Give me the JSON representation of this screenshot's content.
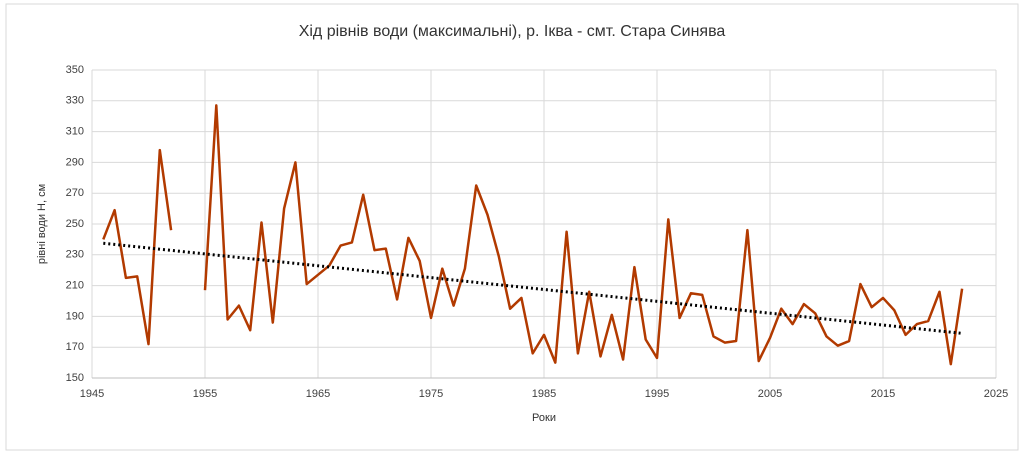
{
  "chart_data": {
    "type": "line",
    "title": "Хід рівнів води (максимальні), р. Іква - смт. Стара Синява",
    "x_label": "Роки",
    "y_label": "рівні води Н, см",
    "x": [
      1946,
      1947,
      1948,
      1949,
      1950,
      1951,
      1952,
      1953,
      1954,
      1955,
      1956,
      1957,
      1958,
      1959,
      1960,
      1961,
      1962,
      1963,
      1964,
      1965,
      1966,
      1967,
      1968,
      1969,
      1970,
      1971,
      1972,
      1973,
      1974,
      1975,
      1976,
      1977,
      1978,
      1979,
      1980,
      1981,
      1982,
      1983,
      1984,
      1985,
      1986,
      1987,
      1988,
      1989,
      1990,
      1991,
      1992,
      1993,
      1994,
      1995,
      1996,
      1997,
      1998,
      1999,
      2000,
      2001,
      2002,
      2003,
      2004,
      2005,
      2006,
      2007,
      2008,
      2009,
      2010,
      2011,
      2012,
      2013,
      2014,
      2015,
      2016,
      2017,
      2018,
      2019,
      2020,
      2021,
      2022
    ],
    "series": [
      {
        "color": "#b23a00",
        "values": [
          240,
          259,
          215,
          216,
          172,
          298,
          246,
          null,
          null,
          207,
          327,
          188,
          197,
          181,
          251,
          186,
          260,
          290,
          211,
          217,
          223,
          236,
          238,
          269,
          233,
          234,
          201,
          241,
          226,
          189,
          221,
          197,
          221,
          275,
          256,
          229,
          195,
          202,
          166,
          178,
          160,
          245,
          166,
          206,
          164,
          191,
          162,
          222,
          175,
          163,
          253,
          189,
          205,
          204,
          177,
          173,
          174,
          246,
          161,
          176,
          195,
          185,
          198,
          192,
          177,
          171,
          174,
          211,
          196,
          202,
          194,
          178,
          185,
          187,
          206,
          159,
          208
        ]
      }
    ],
    "trend": {
      "x": [
        1946,
        2022
      ],
      "values": [
        237.5,
        179
      ],
      "color": "#000000"
    },
    "xlim": [
      1945,
      2025
    ],
    "xticks": [
      1945,
      1955,
      1965,
      1975,
      1985,
      1995,
      2005,
      2015,
      2025
    ],
    "ylim": [
      150,
      350
    ],
    "yticks": [
      150,
      170,
      190,
      210,
      230,
      250,
      270,
      290,
      310,
      330,
      350
    ],
    "grid": true
  }
}
